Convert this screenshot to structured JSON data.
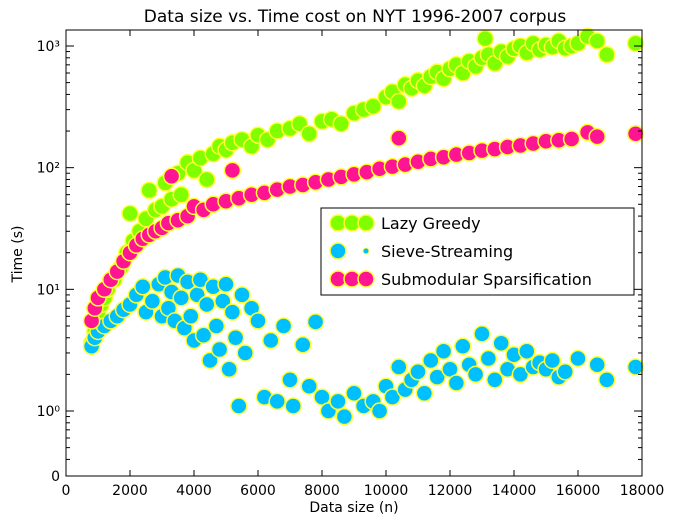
{
  "chart_data": {
    "type": "scatter",
    "title": "Data size vs. Time cost on NYT 1996-2007 corpus",
    "xlabel": "Data size (n)",
    "ylabel": "Time (s)",
    "xlim": [
      0,
      18000
    ],
    "yscale": "log",
    "ylim": [
      0.35,
      1400
    ],
    "x_ticks": [
      0,
      2000,
      4000,
      6000,
      8000,
      10000,
      12000,
      14000,
      16000,
      18000
    ],
    "x_tick_labels": [
      "0",
      "2000",
      "4000",
      "6000",
      "8000",
      "10000",
      "12000",
      "14000",
      "16000",
      "18000"
    ],
    "y_ticks": [
      1,
      10,
      100,
      1000
    ],
    "y_tick_labels": [
      "10⁰",
      "10¹",
      "10²",
      "10³"
    ],
    "y_zero_label": "0",
    "grid": false,
    "legend_position": "right-center",
    "series": [
      {
        "name": "Lazy Greedy",
        "fill": "#7fff00",
        "edge": "#ffff33",
        "points": [
          [
            800,
            3.6
          ],
          [
            900,
            4.5
          ],
          [
            1000,
            6.5
          ],
          [
            1100,
            7.5
          ],
          [
            1200,
            8.5
          ],
          [
            1300,
            10
          ],
          [
            1500,
            12
          ],
          [
            1700,
            15
          ],
          [
            1900,
            20
          ],
          [
            2000,
            42
          ],
          [
            2100,
            25
          ],
          [
            2300,
            30
          ],
          [
            2500,
            38
          ],
          [
            2600,
            65
          ],
          [
            2800,
            45
          ],
          [
            3000,
            48
          ],
          [
            3100,
            75
          ],
          [
            3300,
            55
          ],
          [
            3500,
            90
          ],
          [
            3600,
            60
          ],
          [
            3800,
            110
          ],
          [
            4000,
            95
          ],
          [
            4200,
            120
          ],
          [
            4400,
            80
          ],
          [
            4600,
            130
          ],
          [
            4800,
            150
          ],
          [
            5000,
            140
          ],
          [
            5200,
            160
          ],
          [
            5500,
            170
          ],
          [
            5800,
            150
          ],
          [
            6000,
            185
          ],
          [
            6300,
            170
          ],
          [
            6600,
            200
          ],
          [
            7000,
            210
          ],
          [
            7300,
            230
          ],
          [
            7600,
            190
          ],
          [
            8000,
            240
          ],
          [
            8300,
            250
          ],
          [
            8600,
            230
          ],
          [
            9000,
            280
          ],
          [
            9300,
            300
          ],
          [
            9600,
            320
          ],
          [
            10000,
            380
          ],
          [
            10200,
            420
          ],
          [
            10400,
            350
          ],
          [
            10600,
            480
          ],
          [
            10800,
            450
          ],
          [
            11000,
            520
          ],
          [
            11200,
            470
          ],
          [
            11400,
            560
          ],
          [
            11600,
            610
          ],
          [
            11800,
            540
          ],
          [
            12000,
            650
          ],
          [
            12200,
            700
          ],
          [
            12400,
            600
          ],
          [
            12600,
            750
          ],
          [
            12800,
            680
          ],
          [
            13000,
            800
          ],
          [
            13100,
            1150
          ],
          [
            13200,
            850
          ],
          [
            13400,
            720
          ],
          [
            13600,
            900
          ],
          [
            13800,
            820
          ],
          [
            14000,
            950
          ],
          [
            14200,
            1000
          ],
          [
            14400,
            880
          ],
          [
            14600,
            1050
          ],
          [
            14800,
            930
          ],
          [
            15000,
            1020
          ],
          [
            15200,
            980
          ],
          [
            15400,
            1100
          ],
          [
            15600,
            960
          ],
          [
            15800,
            1000
          ],
          [
            16000,
            1050
          ],
          [
            16300,
            1200
          ],
          [
            16600,
            1100
          ],
          [
            16900,
            850
          ],
          [
            17800,
            1050
          ]
        ]
      },
      {
        "name": "Sieve-Streaming",
        "fill": "#00bfff",
        "edge": "#ffff33",
        "points": [
          [
            800,
            3.4
          ],
          [
            900,
            4.0
          ],
          [
            1000,
            4.5
          ],
          [
            1200,
            5.0
          ],
          [
            1400,
            5.5
          ],
          [
            1600,
            6.0
          ],
          [
            1800,
            6.8
          ],
          [
            2000,
            7.5
          ],
          [
            2200,
            9.0
          ],
          [
            2400,
            10.5
          ],
          [
            2500,
            6.5
          ],
          [
            2700,
            8.0
          ],
          [
            2900,
            11.0
          ],
          [
            3000,
            6.0
          ],
          [
            3100,
            12.5
          ],
          [
            3200,
            7.0
          ],
          [
            3300,
            9.5
          ],
          [
            3400,
            5.5
          ],
          [
            3500,
            13.0
          ],
          [
            3600,
            8.5
          ],
          [
            3700,
            4.8
          ],
          [
            3800,
            11.5
          ],
          [
            3900,
            6.0
          ],
          [
            4000,
            3.8
          ],
          [
            4100,
            9.0
          ],
          [
            4200,
            12.0
          ],
          [
            4300,
            4.2
          ],
          [
            4400,
            7.5
          ],
          [
            4500,
            2.6
          ],
          [
            4600,
            10.5
          ],
          [
            4700,
            5.0
          ],
          [
            4800,
            3.2
          ],
          [
            4900,
            8.0
          ],
          [
            5000,
            11.0
          ],
          [
            5100,
            2.2
          ],
          [
            5200,
            6.5
          ],
          [
            5300,
            4.0
          ],
          [
            5400,
            1.1
          ],
          [
            5500,
            9.0
          ],
          [
            5600,
            3.0
          ],
          [
            5800,
            7.0
          ],
          [
            6000,
            5.5
          ],
          [
            6200,
            1.3
          ],
          [
            6400,
            3.8
          ],
          [
            6600,
            1.2
          ],
          [
            6800,
            5.0
          ],
          [
            7000,
            1.8
          ],
          [
            7100,
            1.1
          ],
          [
            7400,
            3.5
          ],
          [
            7600,
            1.6
          ],
          [
            7800,
            5.4
          ],
          [
            8000,
            1.3
          ],
          [
            8200,
            1.0
          ],
          [
            8500,
            1.2
          ],
          [
            8700,
            0.9
          ],
          [
            9000,
            1.4
          ],
          [
            9300,
            1.1
          ],
          [
            9600,
            1.2
          ],
          [
            9800,
            1.0
          ],
          [
            10000,
            1.6
          ],
          [
            10200,
            1.3
          ],
          [
            10400,
            2.3
          ],
          [
            10600,
            1.5
          ],
          [
            10800,
            1.8
          ],
          [
            11000,
            2.1
          ],
          [
            11200,
            1.4
          ],
          [
            11400,
            2.6
          ],
          [
            11600,
            1.9
          ],
          [
            11800,
            3.1
          ],
          [
            12000,
            2.2
          ],
          [
            12200,
            1.7
          ],
          [
            12400,
            3.4
          ],
          [
            12600,
            2.4
          ],
          [
            12800,
            2.0
          ],
          [
            13000,
            4.3
          ],
          [
            13200,
            2.7
          ],
          [
            13400,
            1.8
          ],
          [
            13600,
            3.6
          ],
          [
            13800,
            2.2
          ],
          [
            14000,
            2.9
          ],
          [
            14200,
            2.0
          ],
          [
            14400,
            3.1
          ],
          [
            14600,
            2.3
          ],
          [
            14800,
            2.5
          ],
          [
            15000,
            2.2
          ],
          [
            15200,
            2.6
          ],
          [
            15400,
            1.9
          ],
          [
            15600,
            2.1
          ],
          [
            16000,
            2.7
          ],
          [
            16600,
            2.4
          ],
          [
            16900,
            1.8
          ],
          [
            17800,
            2.3
          ]
        ]
      },
      {
        "name": "Submodular Sparsification",
        "fill": "#ff1493",
        "edge": "#ffff33",
        "points": [
          [
            800,
            5.5
          ],
          [
            900,
            7.0
          ],
          [
            1000,
            8.5
          ],
          [
            1200,
            10.0
          ],
          [
            1400,
            12.0
          ],
          [
            1600,
            14.0
          ],
          [
            1800,
            17.0
          ],
          [
            2000,
            20.0
          ],
          [
            2200,
            23.0
          ],
          [
            2400,
            26.0
          ],
          [
            2600,
            28.0
          ],
          [
            2800,
            30.0
          ],
          [
            3000,
            32.0
          ],
          [
            3200,
            35.0
          ],
          [
            3300,
            85.0
          ],
          [
            3500,
            37.0
          ],
          [
            3800,
            40.0
          ],
          [
            4000,
            48.0
          ],
          [
            4300,
            45.0
          ],
          [
            4600,
            50.0
          ],
          [
            5000,
            53.0
          ],
          [
            5200,
            95.0
          ],
          [
            5400,
            56.0
          ],
          [
            5800,
            60.0
          ],
          [
            6200,
            62.0
          ],
          [
            6600,
            66.0
          ],
          [
            7000,
            70.0
          ],
          [
            7400,
            72.0
          ],
          [
            7800,
            76.0
          ],
          [
            8200,
            80.0
          ],
          [
            8600,
            84.0
          ],
          [
            9000,
            88.0
          ],
          [
            9400,
            92.0
          ],
          [
            9800,
            98.0
          ],
          [
            10200,
            102.0
          ],
          [
            10400,
            175.0
          ],
          [
            10600,
            106.0
          ],
          [
            11000,
            112.0
          ],
          [
            11400,
            118.0
          ],
          [
            11800,
            122.0
          ],
          [
            12200,
            128.0
          ],
          [
            12600,
            132.0
          ],
          [
            13000,
            138.0
          ],
          [
            13400,
            142.0
          ],
          [
            13800,
            148.0
          ],
          [
            14200,
            152.0
          ],
          [
            14600,
            158.0
          ],
          [
            15000,
            165.0
          ],
          [
            15400,
            168.0
          ],
          [
            15800,
            172.0
          ],
          [
            16300,
            195.0
          ],
          [
            16600,
            180.0
          ],
          [
            17800,
            190.0
          ]
        ]
      }
    ]
  }
}
